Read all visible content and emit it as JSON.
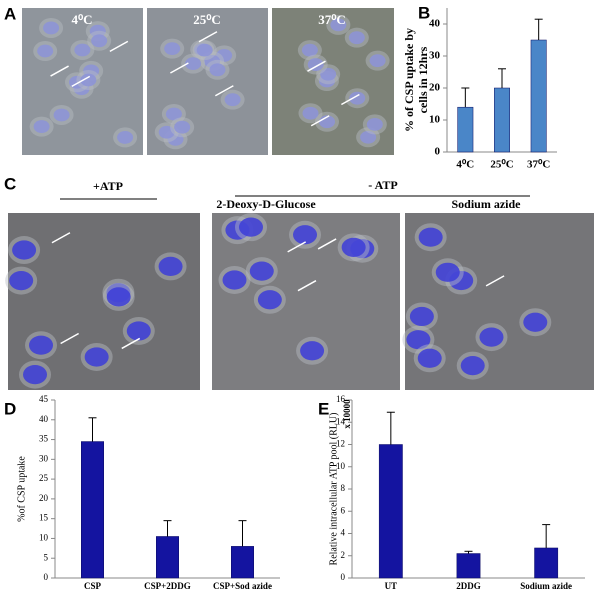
{
  "panels": {
    "A": {
      "label": "A",
      "images": [
        "4⁰C",
        "25⁰C",
        "37⁰C"
      ]
    },
    "B": {
      "label": "B"
    },
    "C": {
      "label": "C",
      "plus_atp": "+ATP",
      "minus_atp": "- ATP",
      "images": [
        "2-Deoxy-D-Glucose",
        "Sodium azide"
      ]
    },
    "D": {
      "label": "D"
    },
    "E": {
      "label": "E"
    }
  },
  "chart_data": [
    {
      "type": "bar",
      "ylabel": [
        "% of CSP uptake by",
        "cells in 12hrs"
      ],
      "categories": [
        "4⁰C",
        "25⁰C",
        "37⁰C"
      ],
      "values": [
        14,
        20,
        35
      ],
      "errors": [
        6,
        6,
        6.5
      ],
      "color": "#4a86c8",
      "ylim": [
        0,
        45
      ],
      "yticks": [
        0,
        10,
        20,
        30,
        40
      ]
    },
    {
      "type": "bar",
      "ylabel": [
        "%of CSP uptake"
      ],
      "categories": [
        "CSP",
        "CSP+2DDG",
        "CSP+Sod azide"
      ],
      "values": [
        34.5,
        10.5,
        8
      ],
      "errors": [
        6,
        4,
        6.5
      ],
      "color": "#1414a0",
      "ylim": [
        0,
        45
      ],
      "yticks": [
        0,
        5,
        10,
        15,
        20,
        25,
        30,
        35,
        40,
        45
      ]
    },
    {
      "type": "bar",
      "ylabel": [
        "Relative intracellular ATP pool (RLU)"
      ],
      "annotation": "x 10000",
      "categories": [
        "UT",
        "2DDG",
        "Sodium azide"
      ],
      "values": [
        12,
        2.2,
        2.7
      ],
      "errors": [
        2.9,
        0.2,
        2.1
      ],
      "color": "#1414a0",
      "ylim": [
        0,
        16
      ],
      "yticks": [
        0,
        2,
        4,
        6,
        8,
        10,
        12,
        14,
        16
      ]
    }
  ]
}
